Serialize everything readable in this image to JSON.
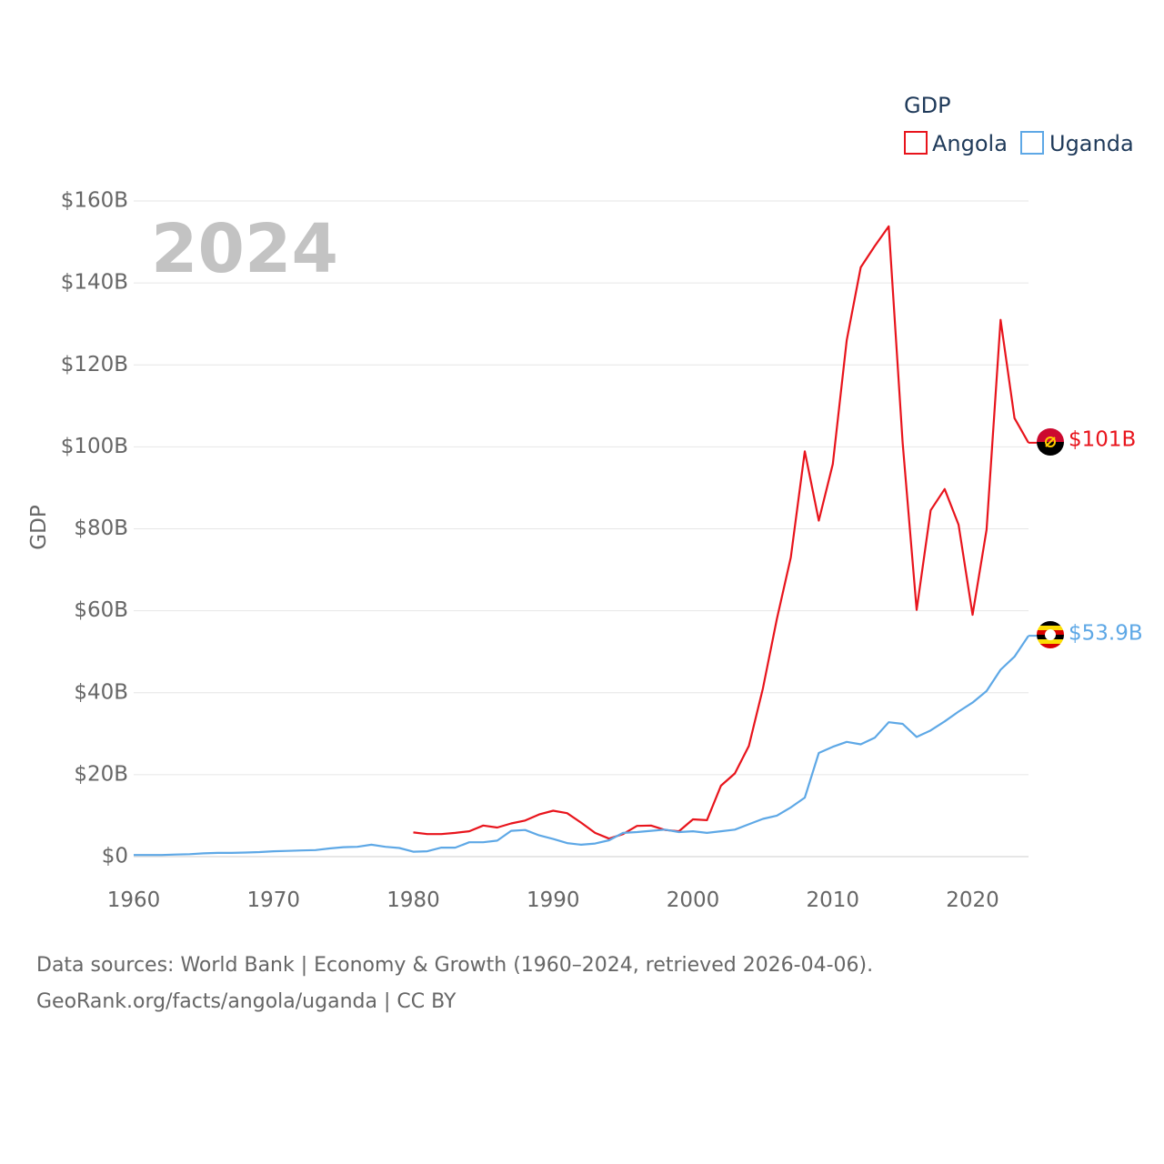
{
  "chart_data": {
    "type": "line",
    "year_watermark": "2024",
    "ylabel": "GDP",
    "ylim": [
      0,
      160
    ],
    "y_ticks": [
      {
        "value": 0,
        "label": "$0"
      },
      {
        "value": 20,
        "label": "$20B"
      },
      {
        "value": 40,
        "label": "$40B"
      },
      {
        "value": 60,
        "label": "$60B"
      },
      {
        "value": 80,
        "label": "$80B"
      },
      {
        "value": 100,
        "label": "$100B"
      },
      {
        "value": 120,
        "label": "$120B"
      },
      {
        "value": 140,
        "label": "$140B"
      },
      {
        "value": 160,
        "label": "$160B"
      }
    ],
    "xlim": [
      1960,
      2024
    ],
    "x_ticks": [
      {
        "value": 1960,
        "label": "1960"
      },
      {
        "value": 1970,
        "label": "1970"
      },
      {
        "value": 1980,
        "label": "1980"
      },
      {
        "value": 1990,
        "label": "1990"
      },
      {
        "value": 2000,
        "label": "2000"
      },
      {
        "value": 2010,
        "label": "2010"
      },
      {
        "value": 2020,
        "label": "2020"
      }
    ],
    "legend": {
      "title": "GDP",
      "position": "top-right"
    },
    "series": [
      {
        "name": "Angola",
        "color": "#e8141c",
        "end_label": "$101B",
        "flag": "angola-flag",
        "x": [
          1980,
          1981,
          1982,
          1983,
          1984,
          1985,
          1986,
          1987,
          1988,
          1989,
          1990,
          1991,
          1992,
          1993,
          1994,
          1995,
          1996,
          1997,
          1998,
          1999,
          2000,
          2001,
          2002,
          2003,
          2004,
          2005,
          2006,
          2007,
          2008,
          2009,
          2010,
          2011,
          2012,
          2013,
          2014,
          2015,
          2016,
          2017,
          2018,
          2019,
          2020,
          2021,
          2022,
          2023,
          2024
        ],
        "values": [
          5.9,
          5.5,
          5.5,
          5.8,
          6.2,
          7.6,
          7.1,
          8.1,
          8.8,
          10.3,
          11.2,
          10.6,
          8.3,
          5.8,
          4.4,
          5.5,
          7.5,
          7.6,
          6.5,
          6.2,
          9.1,
          8.9,
          17.3,
          20.3,
          27.0,
          41.0,
          58.0,
          73.0,
          98.9,
          82.0,
          95.8,
          126.0,
          143.8,
          149.0,
          153.8,
          101.0,
          60.2,
          84.5,
          89.7,
          81.0,
          59.0,
          79.8,
          131.0,
          107.0,
          101.0
        ]
      },
      {
        "name": "Uganda",
        "color": "#5ea8e6",
        "end_label": "$53.9B",
        "flag": "uganda-flag",
        "x": [
          1960,
          1961,
          1962,
          1963,
          1964,
          1965,
          1966,
          1967,
          1968,
          1969,
          1970,
          1971,
          1972,
          1973,
          1974,
          1975,
          1976,
          1977,
          1978,
          1979,
          1980,
          1981,
          1982,
          1983,
          1984,
          1985,
          1986,
          1987,
          1988,
          1989,
          1990,
          1991,
          1992,
          1993,
          1994,
          1995,
          1996,
          1997,
          1998,
          1999,
          2000,
          2001,
          2002,
          2003,
          2004,
          2005,
          2006,
          2007,
          2008,
          2009,
          2010,
          2011,
          2012,
          2013,
          2014,
          2015,
          2016,
          2017,
          2018,
          2019,
          2020,
          2021,
          2022,
          2023,
          2024
        ],
        "values": [
          0.4,
          0.4,
          0.4,
          0.5,
          0.6,
          0.8,
          0.9,
          0.9,
          1.0,
          1.1,
          1.3,
          1.4,
          1.5,
          1.6,
          2.0,
          2.3,
          2.4,
          2.9,
          2.4,
          2.1,
          1.2,
          1.3,
          2.2,
          2.2,
          3.5,
          3.5,
          3.9,
          6.3,
          6.5,
          5.2,
          4.3,
          3.3,
          2.9,
          3.2,
          4.0,
          5.8,
          6.0,
          6.3,
          6.6,
          6.0,
          6.2,
          5.8,
          6.2,
          6.6,
          7.9,
          9.2,
          10.0,
          12.0,
          14.4,
          25.3,
          26.8,
          28.0,
          27.4,
          29.0,
          32.8,
          32.4,
          29.2,
          30.8,
          33.0,
          35.4,
          37.6,
          40.4,
          45.6,
          48.8,
          53.9
        ]
      }
    ]
  },
  "source_line1": "Data sources: World Bank | Economy & Growth (1960–2024, retrieved 2026-04-06).",
  "source_line2": "GeoRank.org/facts/angola/uganda | CC BY"
}
